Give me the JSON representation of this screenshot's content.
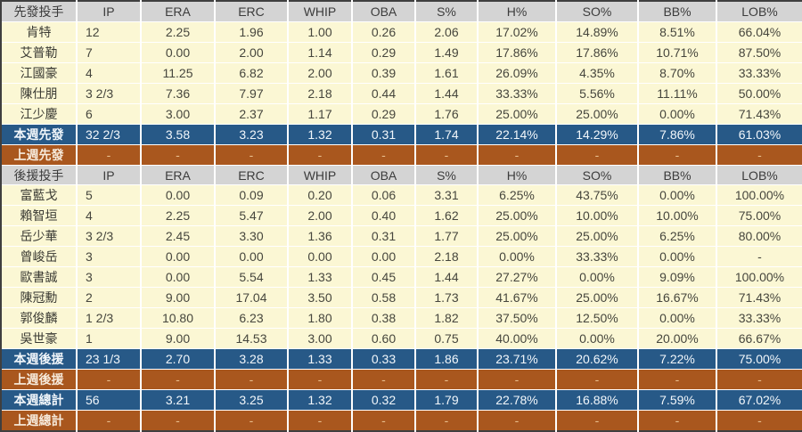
{
  "chart_data": {
    "type": "table",
    "title": "Pitching statistics by pitcher (weekly)",
    "columns": [
      "IP",
      "ERA",
      "ERC",
      "WHIP",
      "OBA",
      "S%",
      "H%",
      "SO%",
      "BB%",
      "LOB%"
    ],
    "colors": {
      "section_header_bg": "#D4D4D4",
      "player_row_bg": "#FBF7D4",
      "current_week_row_bg": "#275987",
      "previous_week_row_bg": "#A9571E",
      "player_text": "#46463D",
      "current_week_text": "#F2F7FB",
      "previous_week_text": "#E9BE8C"
    },
    "sections": [
      {
        "header_label": "先發投手",
        "rows": [
          {
            "kind": "player",
            "label": "肯特",
            "values": [
              "12",
              "2.25",
              "1.96",
              "1.00",
              "0.26",
              "2.06",
              "17.02%",
              "14.89%",
              "8.51%",
              "66.04%"
            ]
          },
          {
            "kind": "player",
            "label": "艾普勒",
            "values": [
              "7",
              "0.00",
              "2.00",
              "1.14",
              "0.29",
              "1.49",
              "17.86%",
              "17.86%",
              "10.71%",
              "87.50%"
            ]
          },
          {
            "kind": "player",
            "label": "江國豪",
            "values": [
              "4",
              "11.25",
              "6.82",
              "2.00",
              "0.39",
              "1.61",
              "26.09%",
              "4.35%",
              "8.70%",
              "33.33%"
            ]
          },
          {
            "kind": "player",
            "label": "陳仕朋",
            "values": [
              "3 2/3",
              "7.36",
              "7.97",
              "2.18",
              "0.44",
              "1.44",
              "33.33%",
              "5.56%",
              "11.11%",
              "50.00%"
            ]
          },
          {
            "kind": "player",
            "label": "江少慶",
            "values": [
              "6",
              "3.00",
              "2.37",
              "1.17",
              "0.29",
              "1.76",
              "25.00%",
              "25.00%",
              "0.00%",
              "71.43%"
            ]
          },
          {
            "kind": "current",
            "label": "本週先發",
            "values": [
              "32 2/3",
              "3.58",
              "3.23",
              "1.32",
              "0.31",
              "1.74",
              "22.14%",
              "14.29%",
              "7.86%",
              "61.03%"
            ]
          },
          {
            "kind": "previous",
            "label": "上週先發",
            "values": [
              "-",
              "-",
              "-",
              "-",
              "-",
              "-",
              "-",
              "-",
              "-",
              "-"
            ]
          }
        ]
      },
      {
        "header_label": "後援投手",
        "rows": [
          {
            "kind": "player",
            "label": "富藍戈",
            "values": [
              "5",
              "0.00",
              "0.09",
              "0.20",
              "0.06",
              "3.31",
              "6.25%",
              "43.75%",
              "0.00%",
              "100.00%"
            ]
          },
          {
            "kind": "player",
            "label": "賴智垣",
            "values": [
              "4",
              "2.25",
              "5.47",
              "2.00",
              "0.40",
              "1.62",
              "25.00%",
              "10.00%",
              "10.00%",
              "75.00%"
            ]
          },
          {
            "kind": "player",
            "label": "岳少華",
            "values": [
              "3 2/3",
              "2.45",
              "3.30",
              "1.36",
              "0.31",
              "1.77",
              "25.00%",
              "25.00%",
              "6.25%",
              "80.00%"
            ]
          },
          {
            "kind": "player",
            "label": "曾峻岳",
            "values": [
              "3",
              "0.00",
              "0.00",
              "0.00",
              "0.00",
              "2.18",
              "0.00%",
              "33.33%",
              "0.00%",
              "-"
            ]
          },
          {
            "kind": "player",
            "label": "歐書誠",
            "values": [
              "3",
              "0.00",
              "5.54",
              "1.33",
              "0.45",
              "1.44",
              "27.27%",
              "0.00%",
              "9.09%",
              "100.00%"
            ]
          },
          {
            "kind": "player",
            "label": "陳冠勳",
            "values": [
              "2",
              "9.00",
              "17.04",
              "3.50",
              "0.58",
              "1.73",
              "41.67%",
              "25.00%",
              "16.67%",
              "71.43%"
            ]
          },
          {
            "kind": "player",
            "label": "郭俊麟",
            "values": [
              "1 2/3",
              "10.80",
              "6.23",
              "1.80",
              "0.38",
              "1.82",
              "37.50%",
              "12.50%",
              "0.00%",
              "33.33%"
            ]
          },
          {
            "kind": "player",
            "label": "吳世豪",
            "values": [
              "1",
              "9.00",
              "14.53",
              "3.00",
              "0.60",
              "0.75",
              "40.00%",
              "0.00%",
              "20.00%",
              "66.67%"
            ]
          },
          {
            "kind": "current",
            "label": "本週後援",
            "values": [
              "23 1/3",
              "2.70",
              "3.28",
              "1.33",
              "0.33",
              "1.86",
              "23.71%",
              "20.62%",
              "7.22%",
              "75.00%"
            ]
          },
          {
            "kind": "previous",
            "label": "上週後援",
            "values": [
              "-",
              "-",
              "-",
              "-",
              "-",
              "-",
              "-",
              "-",
              "-",
              "-"
            ]
          },
          {
            "kind": "current",
            "label": "本週總計",
            "values": [
              "56",
              "3.21",
              "3.25",
              "1.32",
              "0.32",
              "1.79",
              "22.78%",
              "16.88%",
              "7.59%",
              "67.02%"
            ]
          },
          {
            "kind": "previous",
            "label": "上週總計",
            "values": [
              "-",
              "-",
              "-",
              "-",
              "-",
              "-",
              "-",
              "-",
              "-",
              "-"
            ]
          }
        ]
      }
    ]
  }
}
